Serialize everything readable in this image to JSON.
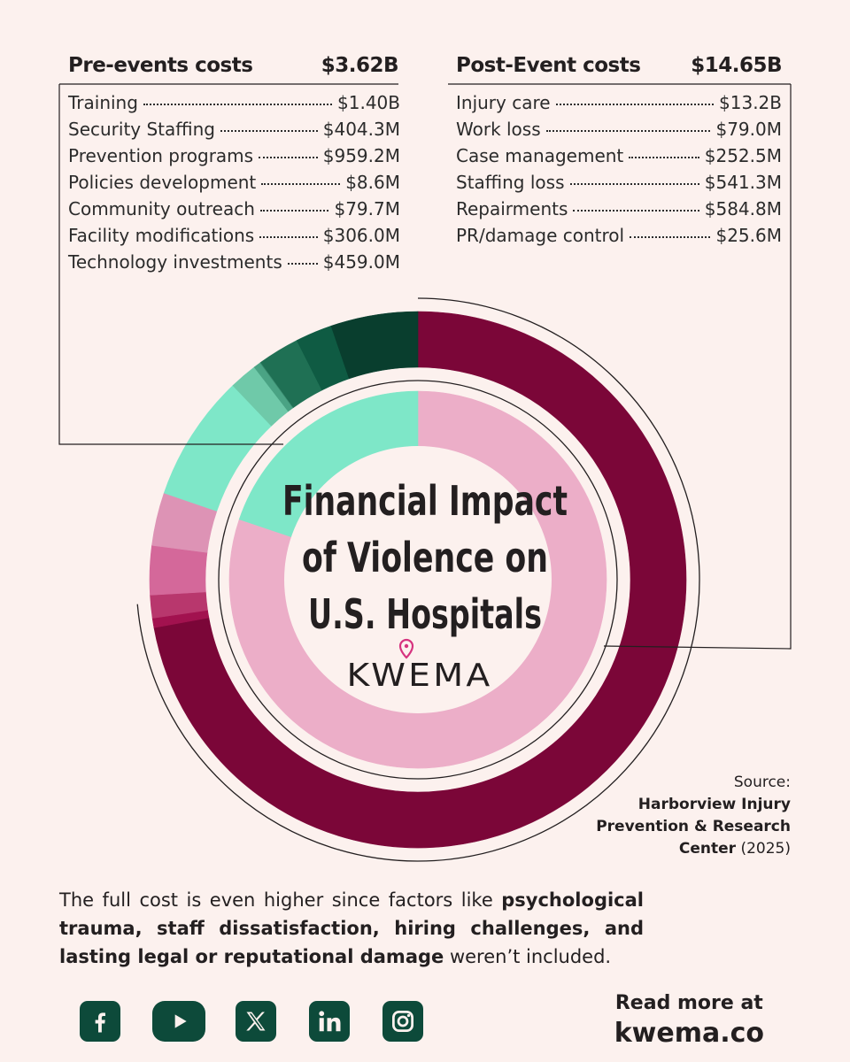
{
  "pre": {
    "title": "Pre-events costs",
    "total": "$3.62B",
    "items": [
      {
        "label": "Training",
        "value": "$1.40B"
      },
      {
        "label": "Security Staffing",
        "value": "$404.3M"
      },
      {
        "label": "Prevention programs",
        "value": "$959.2M"
      },
      {
        "label": "Policies development",
        "value": "$8.6M"
      },
      {
        "label": "Community outreach",
        "value": "$79.7M"
      },
      {
        "label": "Facility modifications",
        "value": "$306.0M"
      },
      {
        "label": "Technology investments",
        "value": "$459.0M"
      }
    ]
  },
  "post": {
    "title": "Post-Event costs",
    "total": "$14.65B",
    "items": [
      {
        "label": "Injury care",
        "value": "$13.2B"
      },
      {
        "label": "Work loss",
        "value": "$79.0M"
      },
      {
        "label": "Case management",
        "value": "$252.5M"
      },
      {
        "label": "Staffing loss",
        "value": "$541.3M"
      },
      {
        "label": "Repairments",
        "value": "$584.8M"
      },
      {
        "label": "PR/damage control",
        "value": "$25.6M"
      }
    ]
  },
  "center": {
    "line1": "Financial Impact",
    "line2": "of Violence on",
    "line3": "U.S. Hospitals",
    "logo_text": "KWEMA"
  },
  "source": {
    "label": "Source:",
    "org_line1": "Harborview Injury",
    "org_line2": "Prevention & Research",
    "org_line3": "Center",
    "year": " (2025)"
  },
  "note": {
    "t1": "The full cost is even higher since factors like ",
    "b1": "psychological trauma, staff dissatisfaction, hiring challenges, and lasting legal or reputational damage",
    "t2": " weren’t included."
  },
  "footer": {
    "read_more": "Read more at",
    "site": "kwema.co",
    "social": [
      "facebook-icon",
      "youtube-icon",
      "x-icon",
      "linkedin-icon",
      "instagram-icon"
    ]
  },
  "colors": {
    "background": "#fcf1ee",
    "injury_care": "#7b0638",
    "pre_total": "#7ee7c8",
    "post_total": "#ecaec8",
    "dark_green": "#0d4a3a"
  },
  "chart_data": [
    {
      "type": "pie",
      "title": "Financial Impact of Violence on U.S. Hospitals",
      "ring": "outer",
      "unit": "USD millions",
      "categories": [
        "Injury care",
        "PR/damage control",
        "Work loss",
        "Case management",
        "Staffing loss",
        "Repairments",
        "Training",
        "Facility modifications",
        "Community outreach",
        "Policies development",
        "Technology investments",
        "Security Staffing",
        "Prevention programs"
      ],
      "values": [
        13200,
        25.6,
        79.0,
        252.5,
        541.3,
        584.8,
        1400,
        306.0,
        79.7,
        8.6,
        459.0,
        404.3,
        959.2
      ],
      "colors": [
        "#7b0638",
        "#a2124f",
        "#a2124f",
        "#b8376d",
        "#d4689a",
        "#dd93b5",
        "#7ee7c8",
        "#6fc9a9",
        "#4aa384",
        "#3b8c70",
        "#1f7054",
        "#0f5b43",
        "#093e2e"
      ]
    },
    {
      "type": "pie",
      "ring": "inner",
      "unit": "USD billions",
      "categories": [
        "Post-Event costs",
        "Pre-events costs"
      ],
      "values": [
        14.65,
        3.62
      ],
      "colors": [
        "#ecaec8",
        "#7ee7c8"
      ]
    }
  ]
}
